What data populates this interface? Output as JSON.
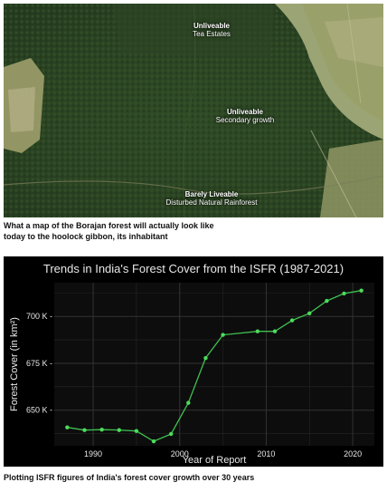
{
  "map_labels": [
    {
      "heading": "Unliveable",
      "sub": "Tea Estates"
    },
    {
      "heading": "Unliveable",
      "sub": "Secondary growth"
    },
    {
      "heading": "Barely Liveable",
      "sub": "Disturbed Natural Rainforest"
    }
  ],
  "caption_top": {
    "line1": "What a map of the Borajan forest will actually look like",
    "line2": "today to the hoolock gibbon, its inhabitant"
  },
  "caption_bottom": "Plotting ISFR figures of India's forest cover growth over 30 years",
  "colors": {
    "line": "#3fbf4f",
    "point": "#4cdc5c",
    "panel_bg": "#000000",
    "grid": "#262626"
  },
  "chart_data": {
    "type": "line",
    "title": "Trends in India's Forest Cover from the ISFR (1987-2021)",
    "xlabel": "Year of Report",
    "ylabel": "Forest Cover (in km²)",
    "x": [
      1987,
      1989,
      1991,
      1993,
      1995,
      1997,
      1999,
      2001,
      2003,
      2005,
      2009,
      2011,
      2013,
      2015,
      2017,
      2019,
      2021
    ],
    "y": [
      640819,
      639364,
      639600,
      639386,
      638879,
      633397,
      637293,
      653898,
      677816,
      690171,
      692027,
      692027,
      697898,
      701673,
      708273,
      712249,
      713789
    ],
    "xlim": [
      1985.5,
      2022.5
    ],
    "ylim": [
      631000,
      718000
    ],
    "x_ticks": [
      1990,
      2000,
      2010,
      2020
    ],
    "x_tick_labels": [
      "1990",
      "2000",
      "2010",
      "2020"
    ],
    "y_ticks": [
      650000,
      675000,
      700000
    ],
    "y_tick_labels": [
      "650 K -",
      "675 K -",
      "700 K -"
    ],
    "grid": true
  }
}
